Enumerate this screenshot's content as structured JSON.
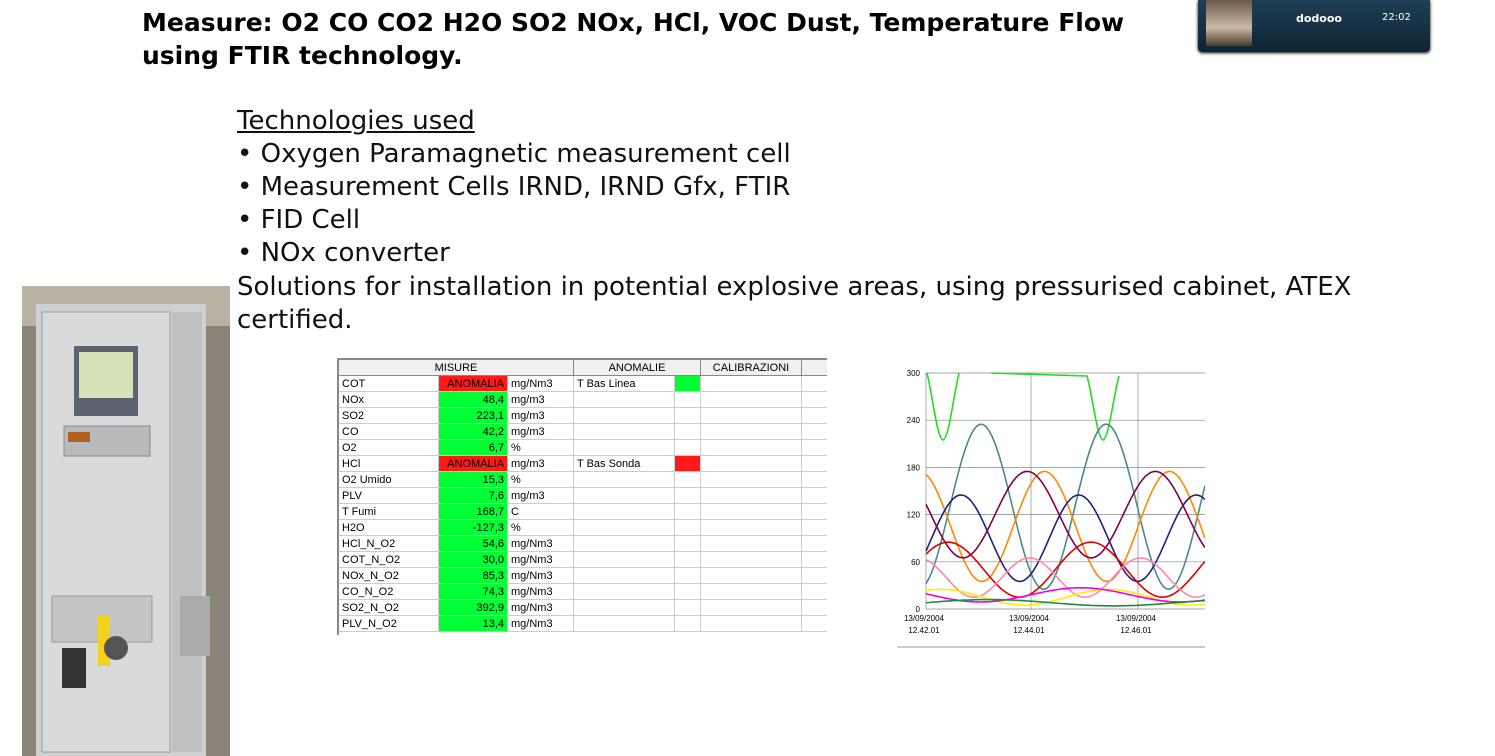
{
  "heading": {
    "line1": "Measure: O2 CO CO2 H2O SO2 NOx, HCl, VOC Dust, Temperature Flow",
    "line2": "using FTIR technology."
  },
  "overlay": {
    "user": "dodooo",
    "time": "22:02"
  },
  "technologies": {
    "title": "Technologies used",
    "items": [
      "• Oxygen Paramagnetic measurement cell",
      "• Measurement Cells IRND, IRND Gfx, FTIR",
      "• FID Cell",
      "• NOx converter"
    ],
    "note": "Solutions for installation in potential explosive areas, using pressurised cabinet, ATEX certified."
  },
  "table": {
    "headers": [
      "MISURE",
      "ANOMALIE",
      "CALIBRAZIONI"
    ],
    "ok_color": "#00ff33",
    "rows": [
      {
        "name": "COT",
        "value": "ANOMALIA",
        "value_color": "#ff1a1a",
        "unit": "mg/Nm3",
        "anomaly": "T Bas Linea",
        "anomaly_color": "#00ff33"
      },
      {
        "name": "NOx",
        "value": "48,4",
        "unit": "mg/m3"
      },
      {
        "name": "SO2",
        "value": "223,1",
        "unit": "mg/m3"
      },
      {
        "name": "CO",
        "value": "42,2",
        "unit": "mg/m3"
      },
      {
        "name": "O2",
        "value": "6,7",
        "unit": "%"
      },
      {
        "name": "HCl",
        "value": "ANOMALIA",
        "value_color": "#ff1a1a",
        "unit": "mg/m3",
        "anomaly": "T Bas Sonda",
        "anomaly_color": "#ff1a1a"
      },
      {
        "name": "O2 Umido",
        "value": "15,3",
        "unit": "%"
      },
      {
        "name": "PLV",
        "value": "7,6",
        "unit": "mg/m3"
      },
      {
        "name": "T Fumi",
        "value": "168,7",
        "unit": "C"
      },
      {
        "name": "H2O",
        "value": "-127,3",
        "unit": "%"
      },
      {
        "name": "HCl_N_O2",
        "value": "54,6",
        "unit": "mg/Nm3"
      },
      {
        "name": "COT_N_O2",
        "value": "30,0",
        "unit": "mg/Nm3"
      },
      {
        "name": "NOx_N_O2",
        "value": "85,3",
        "unit": "mg/Nm3"
      },
      {
        "name": "CO_N_O2",
        "value": "74,3",
        "unit": "mg/Nm3"
      },
      {
        "name": "SO2_N_O2",
        "value": "392,9",
        "unit": "mg/Nm3"
      },
      {
        "name": "PLV_N_O2",
        "value": "13,4",
        "unit": "mg/Nm3"
      }
    ]
  },
  "trend": {
    "ylim": [
      0,
      300
    ],
    "yticks": [
      0,
      60,
      120,
      180,
      240,
      300
    ],
    "xticks": [
      {
        "date": "13/09/2004",
        "time": "12.42.01"
      },
      {
        "date": "13/09/2004",
        "time": "12.44.01"
      },
      {
        "date": "13/09/2004",
        "time": "12.46.01"
      }
    ]
  }
}
